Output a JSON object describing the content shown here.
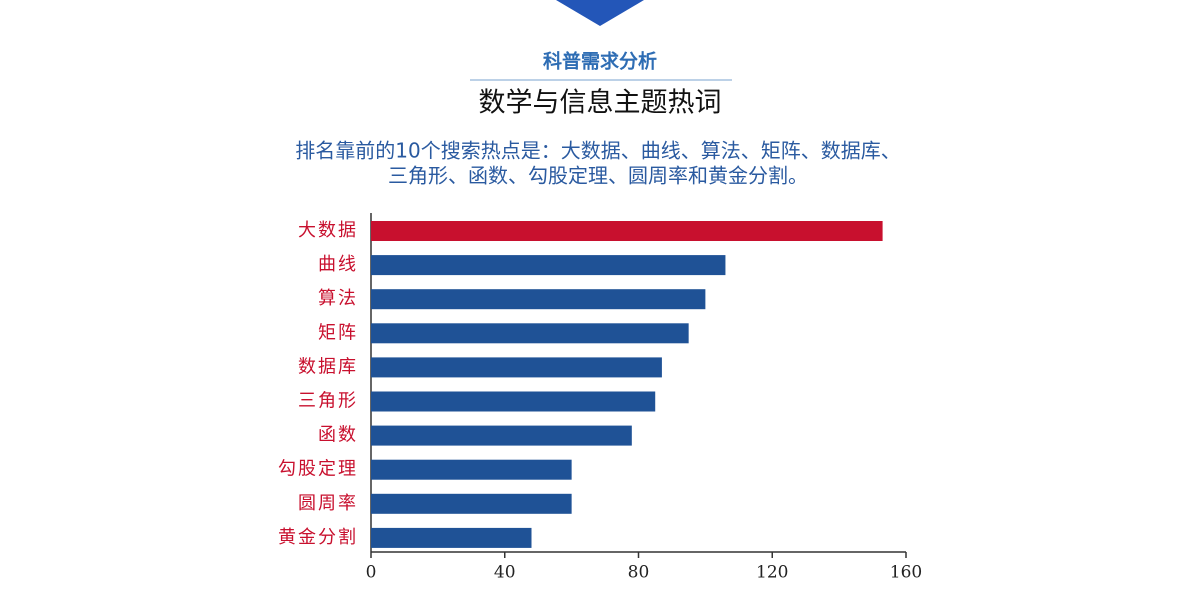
{
  "chart_data": {
    "type": "bar",
    "orientation": "horizontal",
    "subtitle": "科普需求分析",
    "title": "数学与信息主题热词",
    "description": [
      "排名靠前的10个搜索热点是：大数据、曲线、算法、矩阵、数据库、",
      "三角形、函数、勾股定理、圆周率和黄金分割。"
    ],
    "categories": [
      "大数据",
      "曲线",
      "算法",
      "矩阵",
      "数据库",
      "三角形",
      "函数",
      "勾股定理",
      "圆周率",
      "黄金分割"
    ],
    "values": [
      153,
      106,
      100,
      95,
      87,
      85,
      78,
      60,
      60,
      48
    ],
    "colors": [
      "#c8102e",
      "#1f5296",
      "#1f5296",
      "#1f5296",
      "#1f5296",
      "#1f5296",
      "#1f5296",
      "#1f5296",
      "#1f5296",
      "#1f5296"
    ],
    "xlim": [
      0,
      160
    ],
    "xticks": [
      0,
      40,
      80,
      120,
      160
    ]
  }
}
